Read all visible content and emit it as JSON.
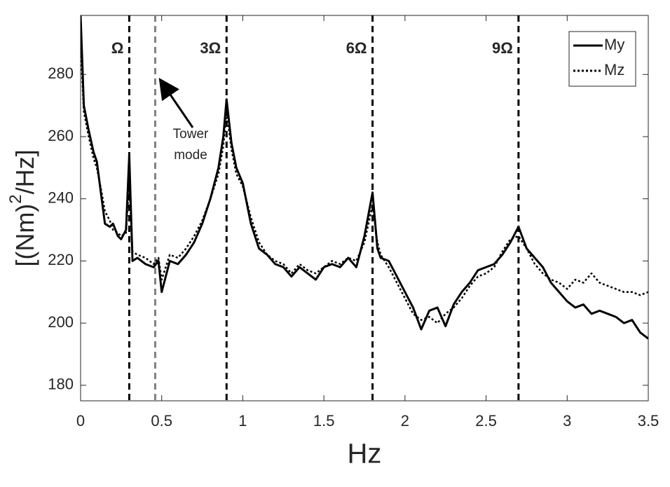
{
  "chart_data": {
    "type": "line",
    "xlabel": "Hz",
    "ylabel": [
      "[(Nm)",
      "2",
      "/Hz]"
    ],
    "x": [
      0,
      0.02,
      0.05,
      0.08,
      0.1,
      0.13,
      0.15,
      0.18,
      0.2,
      0.23,
      0.25,
      0.28,
      0.3,
      0.32,
      0.35,
      0.4,
      0.45,
      0.48,
      0.5,
      0.55,
      0.6,
      0.65,
      0.7,
      0.75,
      0.8,
      0.85,
      0.88,
      0.9,
      0.93,
      0.96,
      1.0,
      1.05,
      1.1,
      1.15,
      1.2,
      1.25,
      1.3,
      1.35,
      1.4,
      1.45,
      1.5,
      1.55,
      1.6,
      1.65,
      1.7,
      1.75,
      1.8,
      1.83,
      1.85,
      1.9,
      1.95,
      2.0,
      2.05,
      2.1,
      2.15,
      2.2,
      2.25,
      2.3,
      2.35,
      2.4,
      2.45,
      2.5,
      2.55,
      2.6,
      2.65,
      2.7,
      2.75,
      2.8,
      2.85,
      2.9,
      2.95,
      3.0,
      3.05,
      3.1,
      3.15,
      3.2,
      3.25,
      3.3,
      3.35,
      3.4,
      3.45,
      3.5
    ],
    "series": [
      {
        "name": "My",
        "color": "#000000",
        "dash": "solid",
        "values": [
          299,
          270,
          262,
          255,
          252,
          240,
          232,
          231,
          232,
          228,
          227,
          230,
          254,
          220,
          221,
          219,
          218,
          220,
          210,
          220,
          219,
          222,
          226,
          232,
          240,
          250,
          260,
          272,
          258,
          250,
          245,
          232,
          224,
          222,
          219,
          218,
          215,
          218,
          216,
          214,
          218,
          219,
          218,
          221,
          218,
          228,
          242,
          224,
          221,
          220,
          215,
          210,
          205,
          198,
          204,
          205,
          199,
          206,
          210,
          213,
          217,
          218,
          219,
          222,
          226,
          231,
          224,
          221,
          218,
          213,
          210,
          207,
          205,
          206,
          203,
          204,
          203,
          202,
          200,
          201,
          197,
          195
        ]
      },
      {
        "name": "Mz",
        "color": "#000000",
        "dash": "dotted",
        "values": [
          290,
          268,
          260,
          253,
          250,
          242,
          236,
          233,
          230,
          229,
          228,
          229,
          245,
          223,
          222,
          221,
          219,
          221,
          214,
          222,
          221,
          224,
          228,
          233,
          240,
          248,
          257,
          268,
          256,
          248,
          244,
          234,
          226,
          222,
          220,
          219,
          216,
          219,
          217,
          216,
          218,
          220,
          219,
          221,
          220,
          226,
          238,
          226,
          222,
          218,
          213,
          208,
          203,
          201,
          202,
          200,
          203,
          205,
          208,
          212,
          215,
          216,
          218,
          223,
          227,
          228,
          224,
          219,
          216,
          214,
          213,
          211,
          214,
          213,
          216,
          213,
          212,
          211,
          210,
          210,
          209,
          210
        ]
      }
    ],
    "vlines": [
      {
        "x": 0.3,
        "label": "Ω",
        "color": "#000000"
      },
      {
        "x": 0.46,
        "color": "#808080"
      },
      {
        "x": 0.9,
        "label": "3Ω",
        "color": "#000000"
      },
      {
        "x": 1.8,
        "label": "6Ω",
        "color": "#000000"
      },
      {
        "x": 2.7,
        "label": "9Ω",
        "color": "#000000"
      }
    ],
    "annotation": [
      "Tower",
      "mode"
    ],
    "xlim": [
      0,
      3.5
    ],
    "xticks": [
      0,
      0.5,
      1,
      1.5,
      2,
      2.5,
      3,
      3.5
    ],
    "ylim": [
      175,
      299
    ],
    "yticks": [
      180,
      200,
      220,
      240,
      260,
      280
    ],
    "legend": "upper right"
  }
}
